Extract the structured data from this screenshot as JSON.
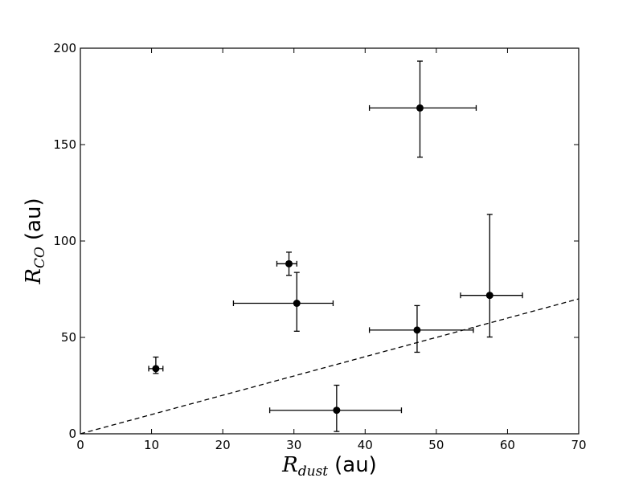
{
  "chart_data": {
    "type": "scatter",
    "title": "",
    "xlabel": {
      "symbol": "R",
      "subscript": "dust",
      "unit": "(au)"
    },
    "ylabel": {
      "symbol": "R",
      "subscript": "CO",
      "unit": "(au)"
    },
    "xlim": [
      0,
      70
    ],
    "ylim": [
      0,
      200
    ],
    "xticks": [
      "0",
      "10",
      "20",
      "30",
      "40",
      "50",
      "60",
      "70"
    ],
    "yticks": [
      "0",
      "50",
      "100",
      "150",
      "200"
    ],
    "grid": false,
    "legend": "none",
    "points": [
      {
        "x": 10.6,
        "y": 33.8,
        "xerr": [
          1.0,
          1.0
        ],
        "yerr": [
          2.5,
          6.0
        ]
      },
      {
        "x": 29.3,
        "y": 88.2,
        "xerr": [
          1.7,
          1.1
        ],
        "yerr": [
          6.0,
          6.0
        ]
      },
      {
        "x": 30.4,
        "y": 67.7,
        "xerr": [
          8.9,
          5.1
        ],
        "yerr": [
          14.5,
          16.0
        ]
      },
      {
        "x": 36.0,
        "y": 12.2,
        "xerr": [
          9.4,
          9.1
        ],
        "yerr": [
          11.0,
          13.0
        ]
      },
      {
        "x": 47.7,
        "y": 169.0,
        "xerr": [
          7.1,
          7.9
        ],
        "yerr": [
          25.5,
          24.3
        ]
      },
      {
        "x": 47.3,
        "y": 53.8,
        "xerr": [
          6.7,
          7.9
        ],
        "yerr": [
          11.5,
          12.7
        ]
      },
      {
        "x": 57.5,
        "y": 71.8,
        "xerr": [
          4.1,
          4.6
        ],
        "yerr": [
          21.6,
          42.0
        ]
      }
    ],
    "reference_line": {
      "style": "dashed",
      "x": [
        0,
        70
      ],
      "y": [
        0,
        70
      ]
    },
    "colors": {
      "points": "#000000",
      "errorbars": "#000000",
      "line": "#000000"
    }
  }
}
